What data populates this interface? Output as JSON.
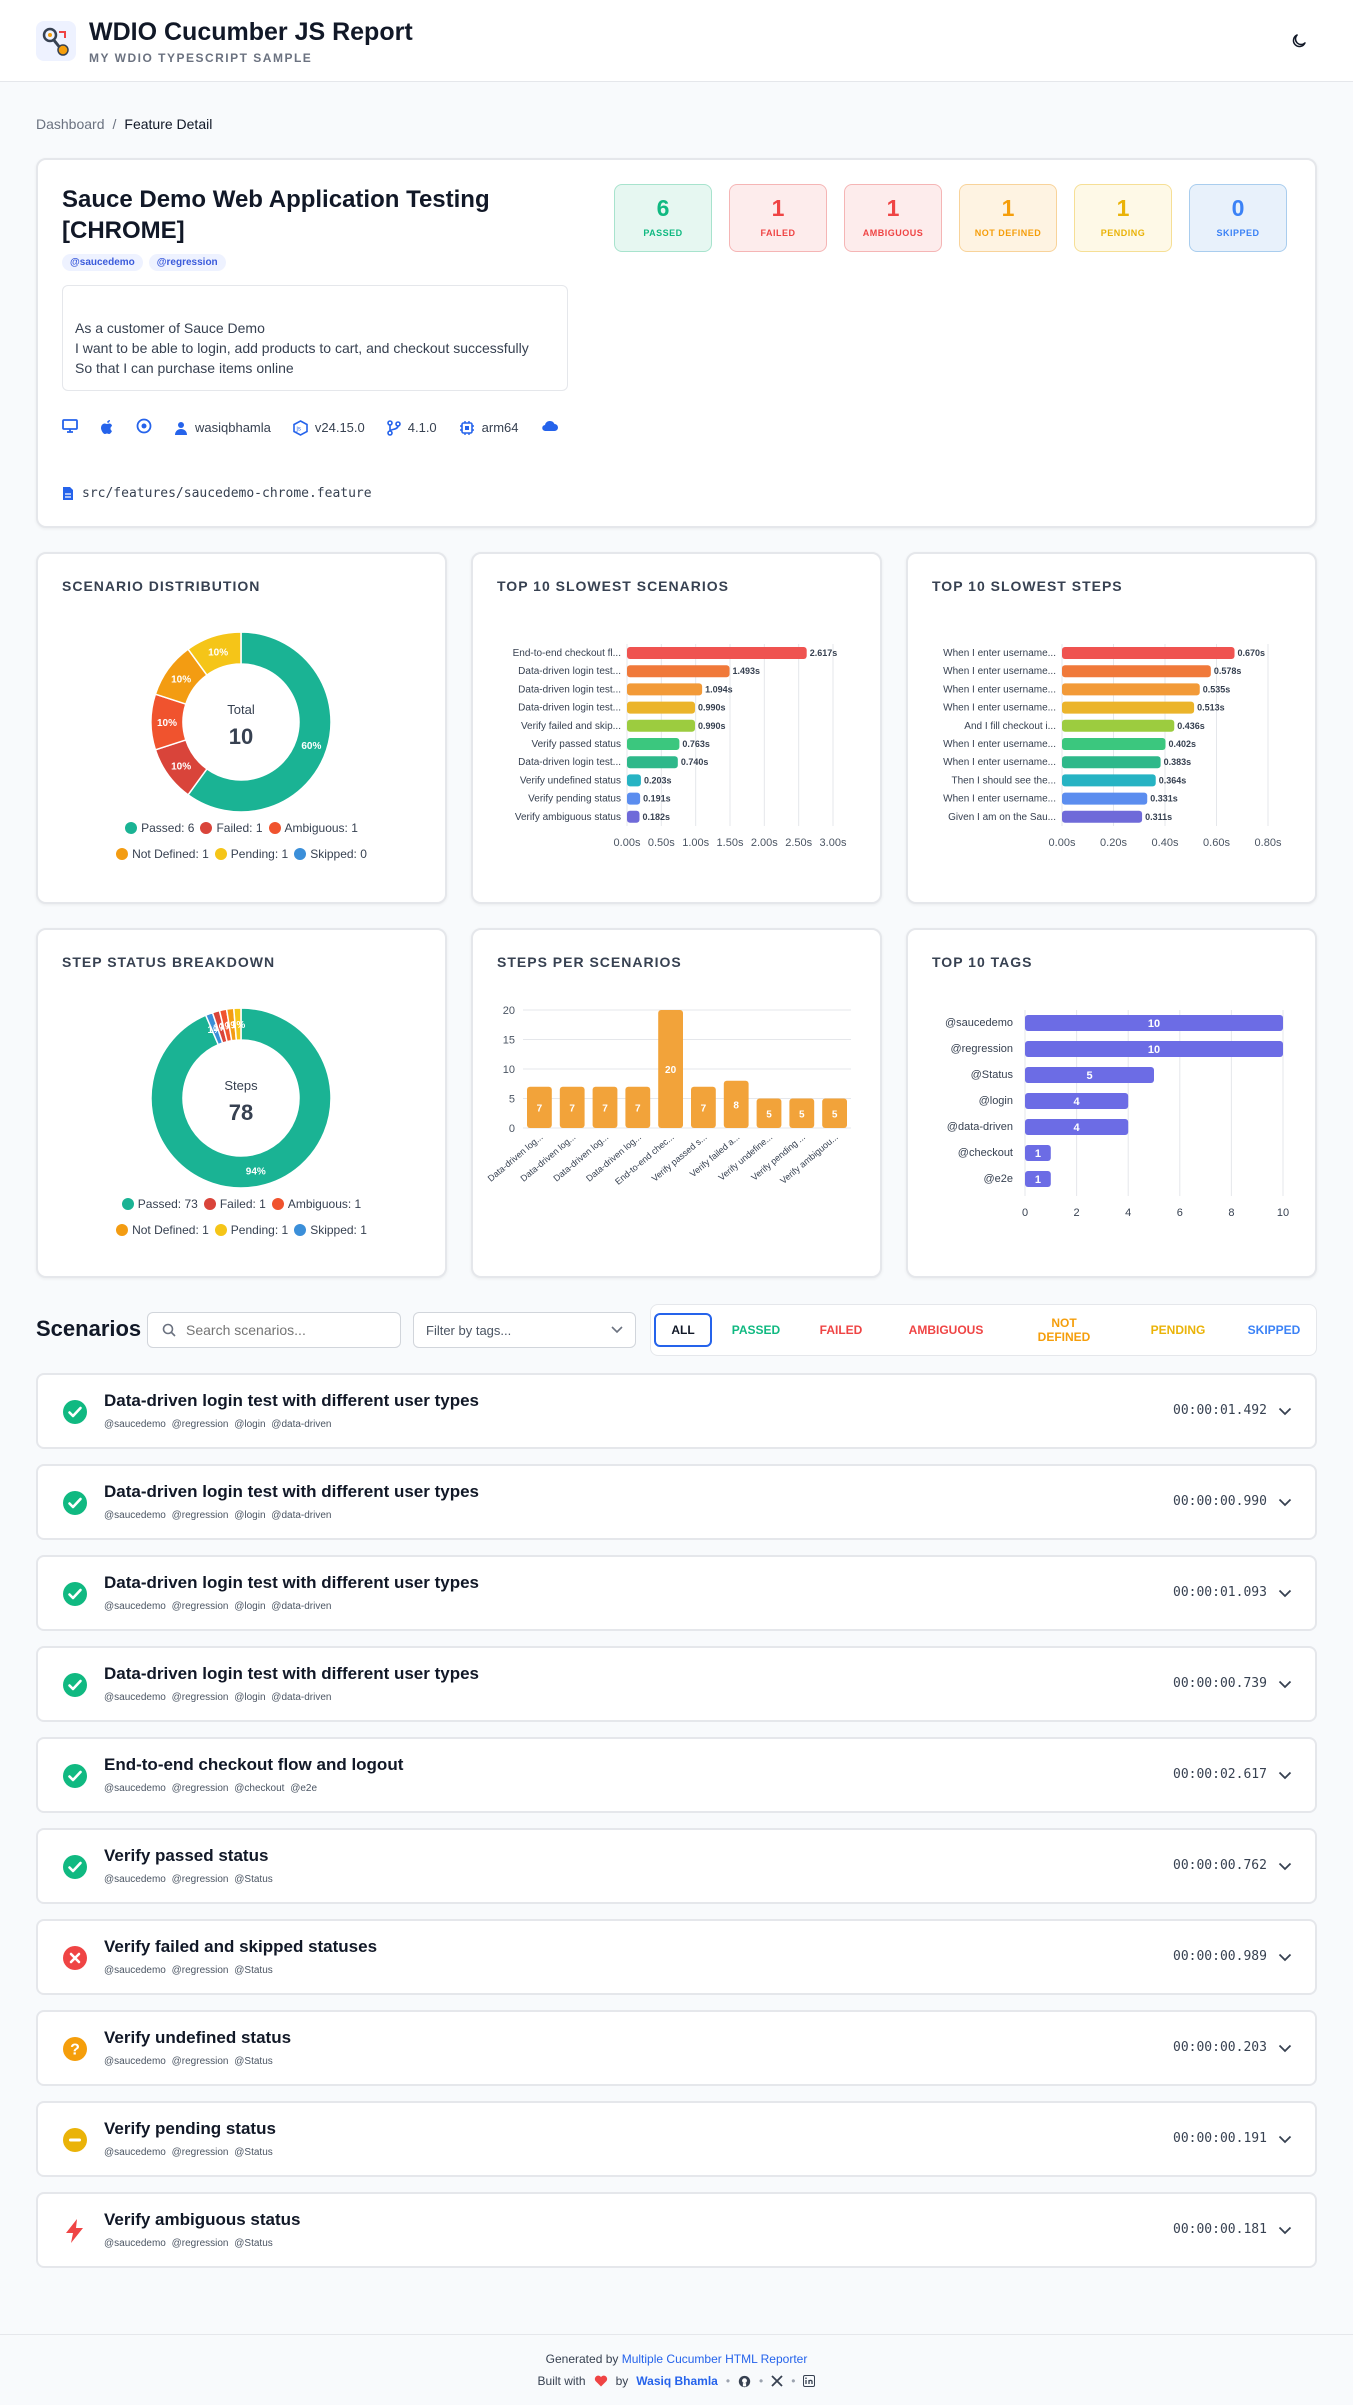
{
  "header": {
    "title": "WDIO Cucumber JS Report",
    "subtitle": "MY WDIO TYPESCRIPT SAMPLE"
  },
  "breadcrumb": {
    "home": "Dashboard",
    "sep": "/",
    "current": "Feature Detail"
  },
  "feature": {
    "title": "Sauce Demo Web Application Testing [CHROME]",
    "tags": [
      "@saucedemo",
      "@regression"
    ],
    "description": [
      "As a customer of Sauce Demo",
      "I want to be able to login, add products to cart, and checkout successfully",
      "So that I can purchase items online"
    ],
    "meta": {
      "user": "wasiqbhamla",
      "node": "v24.15.0",
      "version": "4.1.0",
      "arch": "arm64"
    },
    "file": "src/features/saucedemo-chrome.feature"
  },
  "stats": [
    {
      "count": "6",
      "label": "PASSED",
      "color": "#10b981",
      "bg": "#e6f7f1"
    },
    {
      "count": "1",
      "label": "FAILED",
      "color": "#ef4444",
      "bg": "#fdecec"
    },
    {
      "count": "1",
      "label": "AMBIGUOUS",
      "color": "#ef4444",
      "bg": "#fdecec"
    },
    {
      "count": "1",
      "label": "NOT DEFINED",
      "color": "#f59e0b",
      "bg": "#fef3e2"
    },
    {
      "count": "1",
      "label": "PENDING",
      "color": "#eab308",
      "bg": "#fef9e7"
    },
    {
      "count": "0",
      "label": "SKIPPED",
      "color": "#3b82f6",
      "bg": "#e8f1fb"
    }
  ],
  "chart_titles": {
    "scenario_distribution": "SCENARIO DISTRIBUTION",
    "slowest_scenarios": "TOP 10 SLOWEST SCENARIOS",
    "slowest_steps": "TOP 10 SLOWEST STEPS",
    "step_breakdown": "STEP STATUS BREAKDOWN",
    "steps_per_scenario": "STEPS PER SCENARIOS",
    "top_tags": "TOP 10 TAGS"
  },
  "chart_data": [
    {
      "type": "pie",
      "title": "SCENARIO DISTRIBUTION",
      "center_label": "Total",
      "center_value": "10",
      "slices": [
        {
          "name": "Passed",
          "value": 6,
          "pct": "60%",
          "color": "#1ab394"
        },
        {
          "name": "Failed",
          "value": 1,
          "pct": "10%",
          "color": "#d9443a"
        },
        {
          "name": "Ambiguous",
          "value": 1,
          "pct": "10%",
          "color": "#f0532e"
        },
        {
          "name": "Not Defined",
          "value": 1,
          "pct": "10%",
          "color": "#f39c12"
        },
        {
          "name": "Pending",
          "value": 1,
          "pct": "10%",
          "color": "#f5c518"
        },
        {
          "name": "Skipped",
          "value": 0,
          "pct": "",
          "color": "#3b8fd9"
        }
      ],
      "legend": [
        "Passed: 6",
        "Failed: 1",
        "Ambiguous: 1",
        "Not Defined: 1",
        "Pending: 1",
        "Skipped: 0"
      ]
    },
    {
      "type": "bar",
      "orientation": "horizontal",
      "title": "TOP 10 SLOWEST SCENARIOS",
      "categories": [
        "End-to-end checkout fl...",
        "Data-driven login test...",
        "Data-driven login test...",
        "Data-driven login test...",
        "Verify failed and skip...",
        "Verify passed status",
        "Data-driven login test...",
        "Verify undefined status",
        "Verify pending status",
        "Verify ambiguous status"
      ],
      "values": [
        2.617,
        1.493,
        1.094,
        0.99,
        0.99,
        0.763,
        0.74,
        0.203,
        0.191,
        0.182
      ],
      "labels": [
        "2.617s",
        "1.493s",
        "1.094s",
        "0.990s",
        "0.990s",
        "0.763s",
        "0.740s",
        "0.203s",
        "0.191s",
        "0.182s"
      ],
      "colors": [
        "#ef5350",
        "#f0793a",
        "#f29a38",
        "#ebb42b",
        "#9ccc3f",
        "#3bc77e",
        "#2eb88a",
        "#26b3c3",
        "#5b8def",
        "#6f6ad9"
      ],
      "xticks": [
        "0.00s",
        "0.50s",
        "1.00s",
        "1.50s",
        "2.00s",
        "2.50s",
        "3.00s"
      ],
      "xlim": [
        0,
        3
      ]
    },
    {
      "type": "bar",
      "orientation": "horizontal",
      "title": "TOP 10 SLOWEST STEPS",
      "categories": [
        "When I enter username...",
        "When I enter username...",
        "When I enter username...",
        "When I enter username...",
        "And I fill checkout i...",
        "When I enter username...",
        "When I enter username...",
        "Then I should see the...",
        "When I enter username...",
        "Given I am on the Sau..."
      ],
      "values": [
        0.67,
        0.578,
        0.535,
        0.513,
        0.436,
        0.402,
        0.383,
        0.364,
        0.331,
        0.311
      ],
      "labels": [
        "0.670s",
        "0.578s",
        "0.535s",
        "0.513s",
        "0.436s",
        "0.402s",
        "0.383s",
        "0.364s",
        "0.331s",
        "0.311s"
      ],
      "colors": [
        "#ef5350",
        "#f0793a",
        "#f29a38",
        "#ebb42b",
        "#9ccc3f",
        "#3bc77e",
        "#2eb88a",
        "#26b3c3",
        "#5b8def",
        "#6f6ad9"
      ],
      "xticks": [
        "0.00s",
        "0.20s",
        "0.40s",
        "0.60s",
        "0.80s"
      ],
      "xlim": [
        0,
        0.8
      ]
    },
    {
      "type": "pie",
      "title": "STEP STATUS BREAKDOWN",
      "center_label": "Steps",
      "center_value": "78",
      "slices": [
        {
          "name": "Passed",
          "value": 73,
          "pct": "94%",
          "color": "#1ab394"
        },
        {
          "name": "Failed",
          "value": 1,
          "pct": "1%",
          "color": "#d9443a"
        },
        {
          "name": "Ambiguous",
          "value": 1,
          "pct": "1%",
          "color": "#f0532e"
        },
        {
          "name": "Not Defined",
          "value": 1,
          "pct": "1%",
          "color": "#f39c12"
        },
        {
          "name": "Pending",
          "value": 1,
          "pct": "1%",
          "color": "#f5c518"
        },
        {
          "name": "Skipped",
          "value": 1,
          "pct": "1%",
          "color": "#3b8fd9"
        }
      ],
      "legend": [
        "Passed: 73",
        "Failed: 1",
        "Ambiguous: 1",
        "Not Defined: 1",
        "Pending: 1",
        "Skipped: 1"
      ]
    },
    {
      "type": "bar",
      "title": "STEPS PER SCENARIOS",
      "categories": [
        "Data-driven log...",
        "Data-driven log...",
        "Data-driven log...",
        "Data-driven log...",
        "End-to-end chec...",
        "Verify passed s...",
        "Verify failed a...",
        "Verify undefine...",
        "Verify pending ...",
        "Verify ambiguou..."
      ],
      "values": [
        7,
        7,
        7,
        7,
        20,
        7,
        8,
        5,
        5,
        5
      ],
      "color": "#f2a33a",
      "yticks": [
        "0",
        "5",
        "10",
        "15",
        "20"
      ],
      "ylim": [
        0,
        20
      ]
    },
    {
      "type": "bar",
      "orientation": "horizontal",
      "title": "TOP 10 TAGS",
      "categories": [
        "@saucedemo",
        "@regression",
        "@Status",
        "@login",
        "@data-driven",
        "@checkout",
        "@e2e"
      ],
      "values": [
        10,
        10,
        5,
        4,
        4,
        1,
        1
      ],
      "color": "#6c6ce5",
      "xticks": [
        "0",
        "2",
        "4",
        "6",
        "8",
        "10"
      ],
      "xlim": [
        0,
        10
      ]
    }
  ],
  "scenarios_section": {
    "heading": "Scenarios",
    "search_placeholder": "Search scenarios...",
    "filter_label": "Filter by tags...",
    "tabs": [
      {
        "label": "ALL",
        "color": "#111827"
      },
      {
        "label": "PASSED",
        "color": "#10b981"
      },
      {
        "label": "FAILED",
        "color": "#ef4444"
      },
      {
        "label": "AMBIGUOUS",
        "color": "#ef4444"
      },
      {
        "label": "NOT DEFINED",
        "color": "#f59e0b"
      },
      {
        "label": "PENDING",
        "color": "#eab308"
      },
      {
        "label": "SKIPPED",
        "color": "#3b82f6"
      }
    ]
  },
  "scenarios": [
    {
      "name": "Data-driven login test with different user types",
      "tags": "@saucedemo @regression @login @data-driven",
      "duration": "00:00:01.492",
      "status": "passed"
    },
    {
      "name": "Data-driven login test with different user types",
      "tags": "@saucedemo @regression @login @data-driven",
      "duration": "00:00:00.990",
      "status": "passed"
    },
    {
      "name": "Data-driven login test with different user types",
      "tags": "@saucedemo @regression @login @data-driven",
      "duration": "00:00:01.093",
      "status": "passed"
    },
    {
      "name": "Data-driven login test with different user types",
      "tags": "@saucedemo @regression @login @data-driven",
      "duration": "00:00:00.739",
      "status": "passed"
    },
    {
      "name": "End-to-end checkout flow and logout",
      "tags": "@saucedemo @regression @checkout @e2e",
      "duration": "00:00:02.617",
      "status": "passed"
    },
    {
      "name": "Verify passed status",
      "tags": "@saucedemo @regression @Status",
      "duration": "00:00:00.762",
      "status": "passed"
    },
    {
      "name": "Verify failed and skipped statuses",
      "tags": "@saucedemo @regression @Status",
      "duration": "00:00:00.989",
      "status": "failed"
    },
    {
      "name": "Verify undefined status",
      "tags": "@saucedemo @regression @Status",
      "duration": "00:00:00.203",
      "status": "undefined"
    },
    {
      "name": "Verify pending status",
      "tags": "@saucedemo @regression @Status",
      "duration": "00:00:00.191",
      "status": "pending"
    },
    {
      "name": "Verify ambiguous status",
      "tags": "@saucedemo @regression @Status",
      "duration": "00:00:00.181",
      "status": "ambiguous"
    }
  ],
  "footer": {
    "generated_prefix": "Generated by",
    "generated_link": "Multiple Cucumber HTML Reporter",
    "built_prefix": "Built with",
    "built_by": "by",
    "author": "Wasiq Bhamla"
  }
}
